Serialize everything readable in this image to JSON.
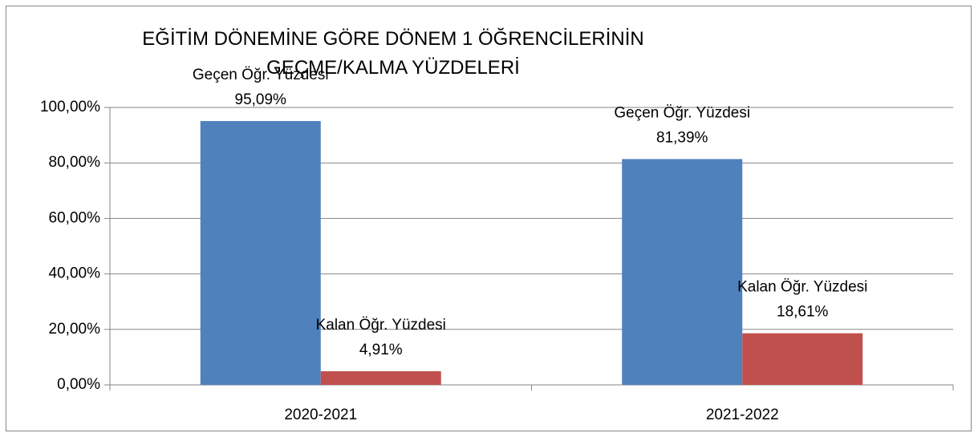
{
  "chart_data": {
    "type": "bar",
    "title": "EĞİTİM DÖNEMİNE GÖRE DÖNEM 1 ÖĞRENCİLERİNİN  GEÇME/KALMA YÜZDELERİ",
    "categories": [
      "2020-2021",
      "2021-2022"
    ],
    "series": [
      {
        "name": "Geçen Öğr. Yüzdesi",
        "color": "#4f81bd",
        "values": [
          95.09,
          81.39
        ],
        "value_labels": [
          "95,09%",
          "81,39%"
        ]
      },
      {
        "name": "Kalan Öğr. Yüzdesi",
        "color": "#c0504d",
        "values": [
          4.91,
          18.61
        ],
        "value_labels": [
          "4,91%",
          "18,61%"
        ]
      }
    ],
    "ylim": [
      0,
      100
    ],
    "yticks": [
      {
        "value": 0,
        "label": "0,00%"
      },
      {
        "value": 20,
        "label": "20,00%"
      },
      {
        "value": 40,
        "label": "40,00%"
      },
      {
        "value": 60,
        "label": "60,00%"
      },
      {
        "value": 80,
        "label": "80,00%"
      },
      {
        "value": 100,
        "label": "100,00%"
      }
    ],
    "grid": true,
    "legend": false
  }
}
